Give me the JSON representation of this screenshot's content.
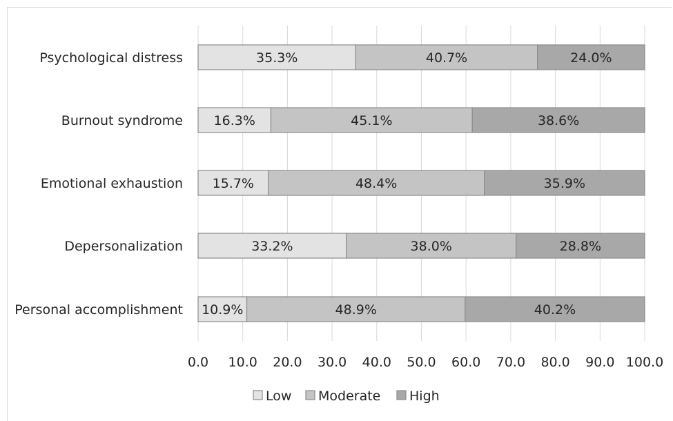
{
  "chart_data": {
    "type": "bar",
    "orientation": "horizontal",
    "stacked": true,
    "categories": [
      "Psychological distress",
      "Burnout syndrome",
      "Emotional exhaustion",
      "Depersonalization",
      "Personal accomplishment"
    ],
    "series": [
      {
        "name": "Low",
        "color": "#e3e3e3",
        "values": [
          35.3,
          16.3,
          15.7,
          33.2,
          10.9
        ],
        "labels": [
          "35.3%",
          "16.3%",
          "15.7%",
          "33.2%",
          "10.9%"
        ]
      },
      {
        "name": "Moderate",
        "color": "#c4c4c4",
        "values": [
          40.7,
          45.1,
          48.4,
          38.0,
          48.9
        ],
        "labels": [
          "40.7%",
          "45.1%",
          "48.4%",
          "38.0%",
          "48.9%"
        ]
      },
      {
        "name": "High",
        "color": "#a8a8a8",
        "values": [
          24.0,
          38.6,
          35.9,
          28.8,
          40.2
        ],
        "labels": [
          "24.0%",
          "38.6%",
          "35.9%",
          "28.8%",
          "40.2%"
        ]
      }
    ],
    "xlim": [
      0,
      100
    ],
    "xticks": [
      "0.0",
      "10.0",
      "20.0",
      "30.0",
      "40.0",
      "50.0",
      "60.0",
      "70.0",
      "80.0",
      "90.0",
      "100.0"
    ],
    "grid": true,
    "legend_position": "bottom",
    "colors": {
      "gridline": "#d9d9d9",
      "bar_border": "#8c8c8c"
    }
  }
}
